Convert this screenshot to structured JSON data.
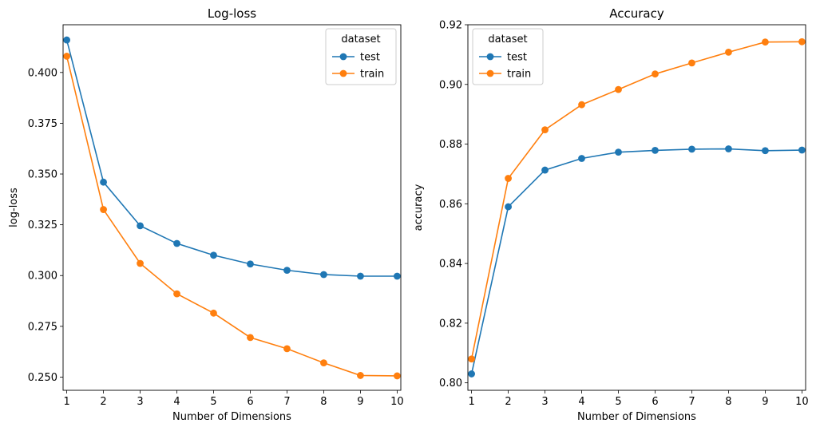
{
  "chart_data": [
    {
      "type": "line",
      "title": "Log-loss",
      "xlabel": "Number of Dimensions",
      "ylabel": "log-loss",
      "x": [
        1,
        2,
        3,
        4,
        5,
        6,
        7,
        8,
        9,
        10
      ],
      "xlim": [
        0.9,
        10.1
      ],
      "ylim": [
        0.2435,
        0.4235
      ],
      "xticks": [
        1,
        2,
        3,
        4,
        5,
        6,
        7,
        8,
        9,
        10
      ],
      "yticks": [
        0.25,
        0.275,
        0.3,
        0.325,
        0.35,
        0.375,
        0.4
      ],
      "ytick_labels": [
        "0.250",
        "0.275",
        "0.300",
        "0.325",
        "0.350",
        "0.375",
        "0.400"
      ],
      "grid": false,
      "legend": {
        "title": "dataset",
        "placement": "top-right"
      },
      "series": [
        {
          "name": "test",
          "color": "#1f77b4",
          "values": [
            0.416,
            0.346,
            0.3245,
            0.3158,
            0.31,
            0.3057,
            0.3026,
            0.3005,
            0.2997,
            0.2997
          ]
        },
        {
          "name": "train",
          "color": "#ff7f0e",
          "values": [
            0.408,
            0.3325,
            0.306,
            0.291,
            0.2815,
            0.2695,
            0.264,
            0.257,
            0.2508,
            0.2506
          ]
        }
      ]
    },
    {
      "type": "line",
      "title": "Accuracy",
      "xlabel": "Number of Dimensions",
      "ylabel": "accuracy",
      "x": [
        1,
        2,
        3,
        4,
        5,
        6,
        7,
        8,
        9,
        10
      ],
      "xlim": [
        0.9,
        10.1
      ],
      "ylim": [
        0.7975,
        0.92
      ],
      "xticks": [
        1,
        2,
        3,
        4,
        5,
        6,
        7,
        8,
        9,
        10
      ],
      "yticks": [
        0.8,
        0.82,
        0.84,
        0.86,
        0.88,
        0.9,
        0.92
      ],
      "ytick_labels": [
        "0.80",
        "0.82",
        "0.84",
        "0.86",
        "0.88",
        "0.90",
        "0.92"
      ],
      "grid": false,
      "legend": {
        "title": "dataset",
        "placement": "top-left"
      },
      "series": [
        {
          "name": "test",
          "color": "#1f77b4",
          "values": [
            0.803,
            0.859,
            0.8713,
            0.8752,
            0.8773,
            0.8779,
            0.8783,
            0.8784,
            0.8778,
            0.878
          ]
        },
        {
          "name": "train",
          "color": "#ff7f0e",
          "values": [
            0.808,
            0.8685,
            0.8848,
            0.8932,
            0.8983,
            0.9035,
            0.9072,
            0.9108,
            0.9142,
            0.9143
          ]
        }
      ]
    }
  ]
}
